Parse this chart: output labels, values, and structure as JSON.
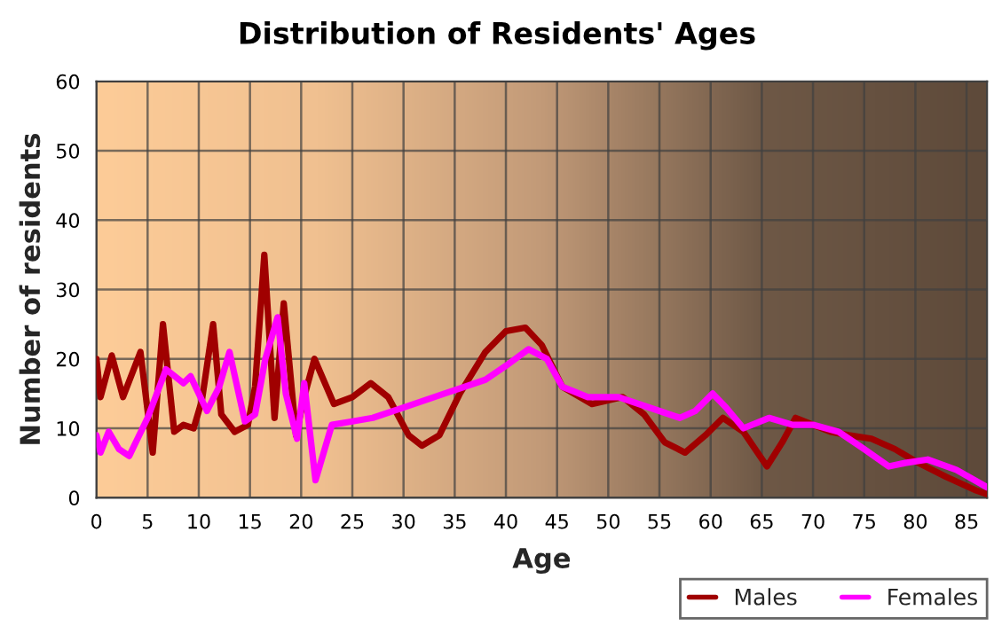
{
  "chart_data": {
    "type": "line",
    "title": "Distribution of Residents' Ages",
    "xlabel": "Age",
    "ylabel": "Number of residents",
    "xlim": [
      0,
      87
    ],
    "xticks": [
      0,
      5,
      10,
      15,
      20,
      25,
      30,
      35,
      40,
      45,
      50,
      55,
      60,
      65,
      70,
      75,
      80,
      85
    ],
    "ylim": [
      0,
      60
    ],
    "yticks": [
      0,
      10,
      20,
      30,
      40,
      50,
      60
    ],
    "grid": true,
    "legend": "bottom right",
    "line_style": "solid",
    "marker": "none",
    "series": [
      {
        "name": "Males",
        "color": "#a00000",
        "x": [
          0,
          0.4,
          1.5,
          2.6,
          4.3,
          5.5,
          6.5,
          7.6,
          8.5,
          9.5,
          10.3,
          11.4,
          12.2,
          13.5,
          14.8,
          15.5,
          16.4,
          17.4,
          18.3,
          19.5,
          20.2,
          21.3,
          23.2,
          25,
          26.8,
          28.5,
          30.5,
          31.8,
          33.5,
          35.5,
          38,
          40,
          41.9,
          43.5,
          45.5,
          48.4,
          51.4,
          53.5,
          55.5,
          57.5,
          59.5,
          61.2,
          63.2,
          65.5,
          67,
          68.3,
          70,
          71.7,
          73.5,
          75.7,
          78,
          80.3,
          83,
          86,
          87
        ],
        "values": [
          20,
          14.5,
          20.5,
          14.5,
          21,
          6.5,
          25,
          9.5,
          10.5,
          10,
          14,
          25,
          12,
          9.5,
          10.5,
          16,
          35,
          11.5,
          28,
          9,
          14,
          20,
          13.5,
          14.5,
          16.5,
          14.5,
          9,
          7.5,
          9,
          15,
          21,
          24,
          24.5,
          22,
          16,
          13.5,
          14.5,
          12,
          8,
          6.5,
          9,
          11.5,
          9.5,
          4.5,
          8,
          11.5,
          10.5,
          9.5,
          9,
          8.5,
          7,
          5,
          3,
          1,
          0.5
        ]
      },
      {
        "name": "Females",
        "color": "#ff00ff",
        "x": [
          0,
          0.4,
          1.2,
          2.2,
          3.2,
          5,
          6.8,
          8.5,
          9.2,
          10.8,
          12,
          13,
          14.5,
          15.5,
          16.5,
          17.7,
          18.5,
          19.6,
          20.3,
          21.4,
          23,
          25,
          27,
          30,
          34,
          38,
          40,
          42.2,
          44,
          45.5,
          48,
          51,
          55,
          57,
          58.5,
          60.2,
          61.5,
          63.2,
          65.7,
          68,
          70,
          72.5,
          75,
          77.4,
          79,
          81.2,
          84,
          87
        ],
        "values": [
          9,
          6.5,
          9.5,
          7,
          6,
          11.5,
          18.5,
          16.5,
          17.5,
          12.5,
          16,
          21,
          11,
          12,
          20,
          26,
          15,
          8.5,
          16.5,
          2.5,
          10.5,
          11,
          11.5,
          13,
          15,
          17,
          19,
          21.4,
          20,
          16,
          14.5,
          14.5,
          12.5,
          11.5,
          12.5,
          15,
          13,
          10,
          11.5,
          10.5,
          10.5,
          9.5,
          7,
          4.5,
          5,
          5.5,
          4,
          1.5
        ]
      }
    ]
  }
}
